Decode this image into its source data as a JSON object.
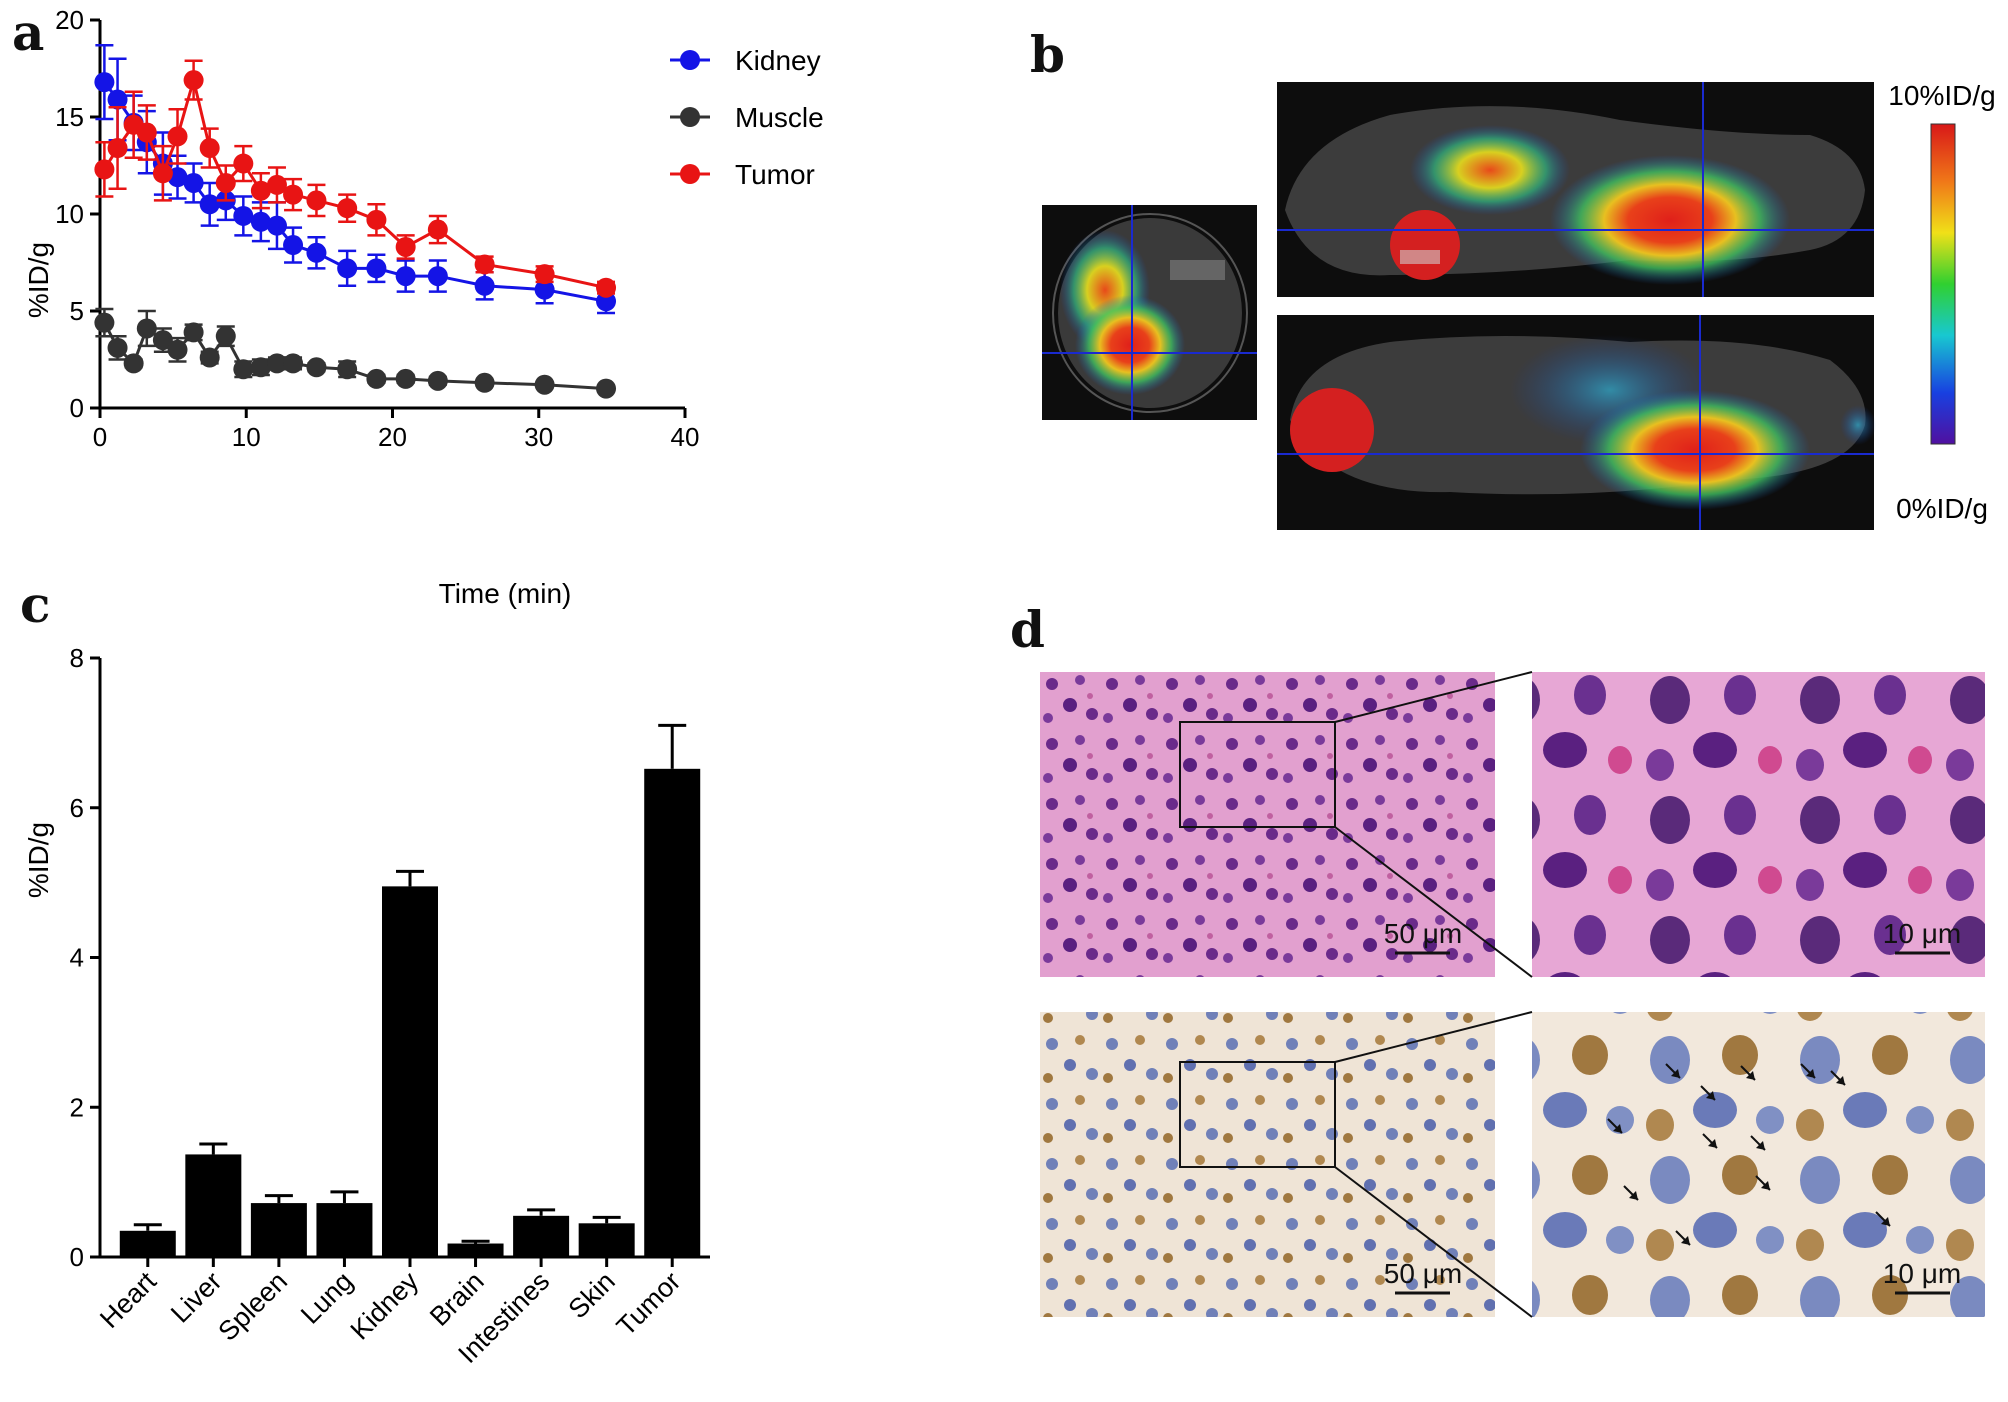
{
  "panels": {
    "a": "a",
    "b": "b",
    "c": "c",
    "d": "d"
  },
  "colors": {
    "kidney": "#1414e6",
    "muscle": "#333333",
    "tumor": "#e81414",
    "axis": "#000000",
    "crosshair": "#1a2ad0"
  },
  "chart_data": [
    {
      "type": "line",
      "panel": "a",
      "xlabel": "Time (min)",
      "ylabel": "%ID/g",
      "xlim": [
        0,
        40
      ],
      "ylim": [
        0,
        20
      ],
      "xticks": [
        "0",
        "10",
        "20",
        "30",
        "40"
      ],
      "yticks": [
        "0",
        "5",
        "10",
        "15",
        "20"
      ],
      "legend_position": "top-right",
      "series": [
        {
          "name": "Kidney",
          "color": "#1414e6",
          "x": [
            0.3,
            1.2,
            2.3,
            3.2,
            4.3,
            5.3,
            6.4,
            7.5,
            8.6,
            9.8,
            11.0,
            12.1,
            13.2,
            14.8,
            16.9,
            18.9,
            20.9,
            23.1,
            26.3,
            30.4,
            34.6
          ],
          "y": [
            16.8,
            15.9,
            14.7,
            13.7,
            12.6,
            11.9,
            11.6,
            10.5,
            10.7,
            9.9,
            9.6,
            9.4,
            8.4,
            8.0,
            7.2,
            7.2,
            6.8,
            6.8,
            6.3,
            6.1,
            5.5
          ],
          "err": [
            1.9,
            2.1,
            1.4,
            1.6,
            1.6,
            1.1,
            1.0,
            1.1,
            1.0,
            1.0,
            1.0,
            1.2,
            0.9,
            0.8,
            0.9,
            0.7,
            0.8,
            0.8,
            0.7,
            0.7,
            0.6
          ]
        },
        {
          "name": "Muscle",
          "color": "#333333",
          "x": [
            0.3,
            1.2,
            2.3,
            3.2,
            4.3,
            5.3,
            6.4,
            7.5,
            8.6,
            9.8,
            11.0,
            12.1,
            13.2,
            14.8,
            16.9,
            18.9,
            20.9,
            23.1,
            26.3,
            30.4,
            34.6
          ],
          "y": [
            4.4,
            3.1,
            2.3,
            4.1,
            3.5,
            3.0,
            3.9,
            2.6,
            3.7,
            2.0,
            2.1,
            2.3,
            2.3,
            2.1,
            2.0,
            1.5,
            1.5,
            1.4,
            1.3,
            1.2,
            1.0
          ],
          "err": [
            0.7,
            0.6,
            0.2,
            0.9,
            0.6,
            0.6,
            0.4,
            0.3,
            0.5,
            0.4,
            0.4,
            0.3,
            0.3,
            0.2,
            0.4,
            0.2,
            0.2,
            0.2,
            0.1,
            0.1,
            0.1
          ]
        },
        {
          "name": "Tumor",
          "color": "#e81414",
          "x": [
            0.3,
            1.2,
            2.3,
            3.2,
            4.3,
            5.3,
            6.4,
            7.5,
            8.6,
            9.8,
            11.0,
            12.1,
            13.2,
            14.8,
            16.9,
            18.9,
            20.9,
            23.1,
            26.3,
            30.4,
            34.6
          ],
          "y": [
            12.3,
            13.4,
            14.6,
            14.2,
            12.1,
            14.0,
            16.9,
            13.4,
            11.6,
            12.6,
            11.2,
            11.5,
            11.0,
            10.7,
            10.3,
            9.7,
            8.3,
            9.2,
            7.4,
            6.9,
            6.2
          ],
          "err": [
            1.4,
            2.1,
            1.7,
            1.4,
            1.4,
            1.4,
            1.0,
            1.0,
            0.9,
            0.9,
            0.9,
            0.9,
            0.8,
            0.8,
            0.7,
            0.8,
            0.6,
            0.7,
            0.4,
            0.4,
            0.3
          ]
        }
      ]
    },
    {
      "type": "bar",
      "panel": "c",
      "ylabel": "%ID/g",
      "ylim": [
        0,
        8
      ],
      "yticks": [
        "0",
        "2",
        "4",
        "6",
        "8"
      ],
      "categories": [
        "Heart",
        "Liver",
        "Spleen",
        "Lung",
        "Kidney",
        "Brain",
        "Intestines",
        "Skin",
        "Tumor"
      ],
      "values": [
        0.35,
        1.37,
        0.72,
        0.72,
        4.95,
        0.18,
        0.55,
        0.45,
        6.52
      ],
      "err": [
        0.08,
        0.14,
        0.1,
        0.15,
        0.2,
        0.03,
        0.08,
        0.08,
        0.58
      ]
    }
  ],
  "pet": {
    "scale_max": "10%ID/g",
    "scale_min": "0%ID/g"
  },
  "histology": {
    "scale_low": "50 μm",
    "scale_high": "10 μm"
  }
}
